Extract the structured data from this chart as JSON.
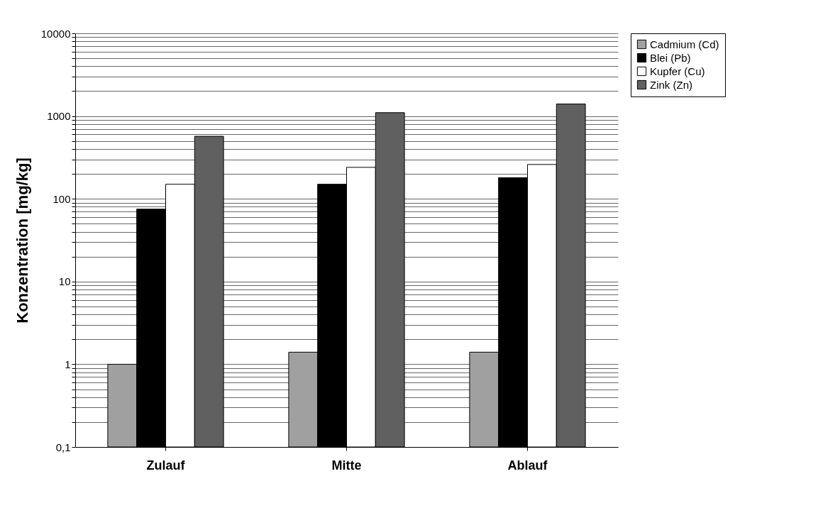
{
  "chart_data": {
    "type": "bar",
    "ylabel": "Konzentration [mg/kg]",
    "categories": [
      "Zulauf",
      "Mitte",
      "Ablauf"
    ],
    "series": [
      {
        "name": "Cadmium (Cd)",
        "color": "#a0a0a0",
        "values": [
          1,
          1.4,
          1.4
        ]
      },
      {
        "name": "Blei (Pb)",
        "color": "#000000",
        "values": [
          75,
          150,
          180
        ]
      },
      {
        "name": "Kupfer (Cu)",
        "color": "#ffffff",
        "values": [
          150,
          240,
          260
        ]
      },
      {
        "name": "Zink (Zn)",
        "color": "#606060",
        "values": [
          570,
          1100,
          1400
        ]
      }
    ],
    "log": true,
    "ylim": [
      0.1,
      10000
    ],
    "yticks": [
      {
        "value": 0.1,
        "label": "0,1"
      },
      {
        "value": 0.2,
        "label": null
      },
      {
        "value": 0.3,
        "label": null
      },
      {
        "value": 0.4,
        "label": null
      },
      {
        "value": 0.5,
        "label": null
      },
      {
        "value": 0.6,
        "label": null
      },
      {
        "value": 0.7,
        "label": null
      },
      {
        "value": 0.8,
        "label": null
      },
      {
        "value": 0.9,
        "label": null
      },
      1,
      {
        "value": 2,
        "label": null
      },
      {
        "value": 3,
        "label": null
      },
      {
        "value": 4,
        "label": null
      },
      {
        "value": 5,
        "label": null
      },
      {
        "value": 6,
        "label": null
      },
      {
        "value": 7,
        "label": null
      },
      {
        "value": 8,
        "label": null
      },
      {
        "value": 9,
        "label": null
      },
      10,
      {
        "value": 20,
        "label": null
      },
      {
        "value": 30,
        "label": null
      },
      {
        "value": 40,
        "label": null
      },
      {
        "value": 50,
        "label": null
      },
      {
        "value": 60,
        "label": null
      },
      {
        "value": 70,
        "label": null
      },
      {
        "value": 80,
        "label": null
      },
      {
        "value": 90,
        "label": null
      },
      100,
      {
        "value": 200,
        "label": null
      },
      {
        "value": 300,
        "label": null
      },
      {
        "value": 400,
        "label": null
      },
      {
        "value": 500,
        "label": null
      },
      {
        "value": 600,
        "label": null
      },
      {
        "value": 700,
        "label": null
      },
      {
        "value": 800,
        "label": null
      },
      {
        "value": 900,
        "label": null
      },
      1000,
      {
        "value": 2000,
        "label": null
      },
      {
        "value": 3000,
        "label": null
      },
      {
        "value": 4000,
        "label": null
      },
      {
        "value": 5000,
        "label": null
      },
      {
        "value": 6000,
        "label": null
      },
      {
        "value": 7000,
        "label": null
      },
      {
        "value": 8000,
        "label": null
      },
      {
        "value": 9000,
        "label": null
      },
      10000
    ],
    "grid": "y",
    "legend": "right"
  }
}
